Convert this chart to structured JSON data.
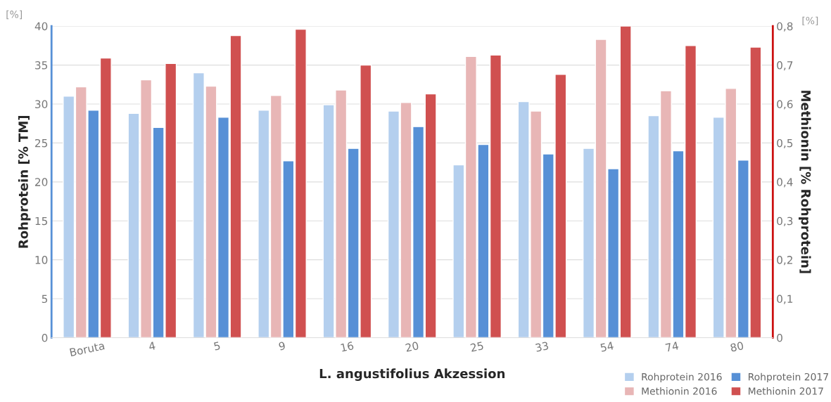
{
  "chart_data": {
    "type": "bar",
    "xlabel": "L. angustifolius Akzession",
    "ylabel": "Rohprotein [% TM]",
    "y2label": "Methionin [% Rohprotein]",
    "categories": [
      "Boruta",
      "4",
      "5",
      "9",
      "16",
      "20",
      "25",
      "33",
      "54",
      "74",
      "80"
    ],
    "series": [
      {
        "name": "Rohprotein 2016",
        "color": "#b4cfee",
        "values": [
          31.0,
          28.8,
          34.0,
          29.2,
          29.9,
          29.1,
          22.2,
          30.3,
          24.3,
          28.5,
          28.3
        ]
      },
      {
        "name": "Methionin 2016",
        "color": "#e8b6b6",
        "axis": "y2",
        "values": [
          0.644,
          0.662,
          0.646,
          0.622,
          0.636,
          0.604,
          0.722,
          0.582,
          0.766,
          0.634,
          0.64
        ]
      },
      {
        "name": "Rohprotein 2017",
        "color": "#5790d6",
        "values": [
          29.2,
          27.0,
          28.3,
          22.7,
          24.3,
          27.1,
          24.8,
          23.6,
          21.7,
          24.0,
          22.8
        ]
      },
      {
        "name": "Methionin 2017",
        "color": "#d05050",
        "axis": "y2",
        "values": [
          0.718,
          0.704,
          0.776,
          0.792,
          0.7,
          0.626,
          0.726,
          0.676,
          0.8,
          0.75,
          0.746
        ]
      }
    ],
    "ylim": [
      0,
      40
    ],
    "yticks": [
      0,
      5,
      10,
      15,
      20,
      25,
      30,
      35,
      40
    ],
    "y2lim": [
      0,
      0.8
    ],
    "y2ticks": [
      0,
      {
        "value": 0.1,
        "label": "0,1"
      },
      {
        "value": 0.2,
        "label": "0,2"
      },
      {
        "value": 0.3,
        "label": "0,3"
      },
      {
        "value": 0.4,
        "label": "0,4"
      },
      {
        "value": 0.5,
        "label": "0,5"
      },
      {
        "value": 0.6,
        "label": "0,6"
      },
      {
        "value": 0.7,
        "label": "0,7"
      },
      {
        "value": 0.8,
        "label": "0,8"
      }
    ],
    "annotations": [
      "[%]",
      "[%]"
    ],
    "grid": "y",
    "legend": "bottom right"
  }
}
